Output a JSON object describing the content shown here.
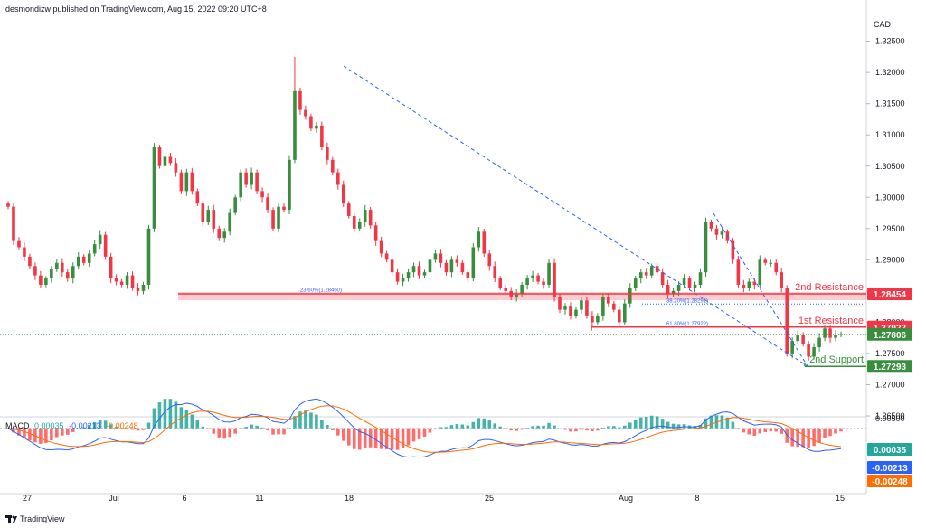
{
  "header": {
    "publisher": "desmondizw published on TradingView.com, Aug 15, 2022 09:20 UTC+8"
  },
  "currency": "CAD",
  "footer": {
    "brand": "TradingView"
  },
  "colors": {
    "up": "#388e3c",
    "down": "#f23645",
    "resistance": "#f23645",
    "support": "#388e3c",
    "trend": "#2962ff",
    "macd_line": "#2962ff",
    "signal_line": "#ff6d00",
    "hist_up": "#26a69a",
    "hist_down": "#ff5252"
  },
  "chart_data": [
    {
      "type": "candlestick",
      "ylim": [
        1.265,
        1.329
      ],
      "y_ticks": [
        "1.32500",
        "1.32000",
        "1.31500",
        "1.31000",
        "1.30500",
        "1.30000",
        "1.29500",
        "1.29000",
        "1.28500",
        "1.28000",
        "1.27500",
        "1.27000",
        "1.26500"
      ],
      "x_ticks": [
        "27",
        "Jul",
        "6",
        "11",
        "18",
        "25",
        "Aug",
        "8",
        "15"
      ],
      "close_series": [
        1.2985,
        1.293,
        1.292,
        1.2905,
        1.289,
        1.2875,
        1.286,
        1.287,
        1.2885,
        1.2895,
        1.288,
        1.287,
        1.289,
        1.2905,
        1.2895,
        1.291,
        1.2925,
        1.294,
        1.2905,
        1.287,
        1.2865,
        1.286,
        1.2875,
        1.2855,
        1.285,
        1.286,
        1.295,
        1.308,
        1.305,
        1.3065,
        1.3055,
        1.304,
        1.301,
        1.304,
        1.301,
        1.299,
        1.296,
        1.298,
        1.295,
        1.2935,
        1.2945,
        1.2975,
        1.3,
        1.304,
        1.302,
        1.304,
        1.301,
        1.3,
        1.298,
        1.295,
        1.2985,
        1.298,
        1.306,
        1.317,
        1.314,
        1.313,
        1.311,
        1.3115,
        1.308,
        1.306,
        1.304,
        1.302,
        1.299,
        1.297,
        1.295,
        1.296,
        1.298,
        1.2955,
        1.293,
        1.291,
        1.29,
        1.288,
        1.2865,
        1.287,
        1.288,
        1.289,
        1.2875,
        1.288,
        1.29,
        1.291,
        1.2895,
        1.288,
        1.29,
        1.2895,
        1.288,
        1.287,
        1.292,
        1.2945,
        1.291,
        1.289,
        1.287,
        1.2855,
        1.285,
        1.284,
        1.2845,
        1.286,
        1.287,
        1.2875,
        1.2865,
        1.286,
        1.2895,
        1.284,
        1.282,
        1.2825,
        1.281,
        1.282,
        1.2835,
        1.281,
        1.28,
        1.281,
        1.284,
        1.283,
        1.282,
        1.28,
        1.283,
        1.2855,
        1.287,
        1.288,
        1.2875,
        1.289,
        1.288,
        1.286,
        1.2845,
        1.285,
        1.286,
        1.287,
        1.2855,
        1.286,
        1.288,
        1.296,
        1.295,
        1.294,
        1.2945,
        1.293,
        1.29,
        1.286,
        1.2855,
        1.2865,
        1.286,
        1.29,
        1.2895,
        1.2895,
        1.288,
        1.2855,
        1.275,
        1.277,
        1.278,
        1.2765,
        1.2745,
        1.276,
        1.2775,
        1.279,
        1.2775,
        1.278,
        1.2781
      ],
      "levels": [
        {
          "label": "2nd Resistance",
          "price": "1.28454",
          "value": 1.28454
        },
        {
          "label": "1st Resistance",
          "price": "1.27922",
          "value": 1.27922
        },
        {
          "label": "2nd Support",
          "price": "1.27293",
          "value": 1.27293
        }
      ],
      "last_price": {
        "price": "1.27806",
        "value": 1.27806
      },
      "fib_labels": [
        {
          "text": "23.60%(1.28460)",
          "value": 1.2846
        },
        {
          "text": "38.20%(1.28291)",
          "value": 1.28291
        },
        {
          "text": "61.80%(1.27922)",
          "value": 1.27922
        }
      ],
      "trend_lines": [
        {
          "from": [
            "Jul 14",
            1.3225
          ],
          "to": [
            "Aug 12",
            1.2729
          ]
        },
        {
          "from": [
            "Aug 8",
            1.2984
          ],
          "to": [
            "Aug 12",
            1.2729
          ]
        }
      ]
    },
    {
      "type": "macd",
      "ylim": [
        -0.003,
        0.0005
      ],
      "y_ticks": [
        "0.00500"
      ],
      "legend": {
        "name": "MACD",
        "hist": "0.00035",
        "macd": "-0.00213",
        "signal": "-0.00248"
      }
    }
  ]
}
